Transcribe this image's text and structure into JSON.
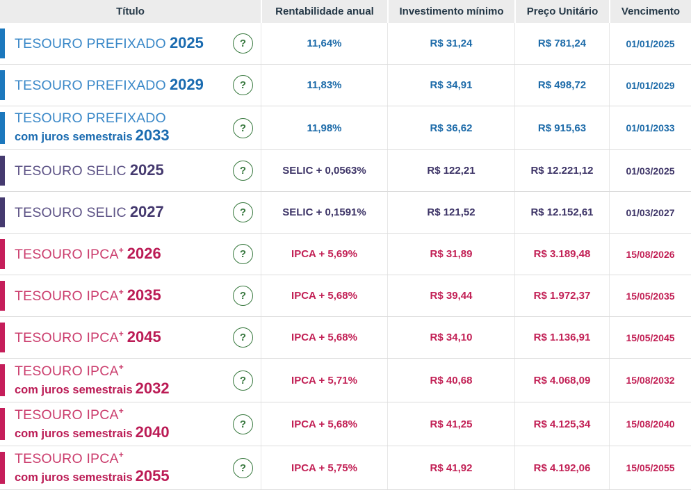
{
  "table": {
    "columns": [
      "Título",
      "Rentabilidade anual",
      "Investimento mínimo",
      "Preço Unitário",
      "Vencimento"
    ],
    "help_glyph": "?",
    "rows": [
      {
        "group": "prefixado",
        "name": "TESOURO PREFIXADO",
        "plus": "",
        "sub": "",
        "year": "2025",
        "rate": "11,64%",
        "min_investment": "R$ 31,24",
        "unit_price": "R$ 781,24",
        "maturity": "01/01/2025"
      },
      {
        "group": "prefixado",
        "name": "TESOURO PREFIXADO",
        "plus": "",
        "sub": "",
        "year": "2029",
        "rate": "11,83%",
        "min_investment": "R$ 34,91",
        "unit_price": "R$ 498,72",
        "maturity": "01/01/2029"
      },
      {
        "group": "prefixado",
        "name": "TESOURO PREFIXADO",
        "plus": "",
        "sub": "com juros semestrais",
        "year": "2033",
        "rate": "11,98%",
        "min_investment": "R$ 36,62",
        "unit_price": "R$ 915,63",
        "maturity": "01/01/2033"
      },
      {
        "group": "selic",
        "name": "TESOURO SELIC",
        "plus": "",
        "sub": "",
        "year": "2025",
        "rate": "SELIC + 0,0563%",
        "min_investment": "R$ 122,21",
        "unit_price": "R$ 12.221,12",
        "maturity": "01/03/2025"
      },
      {
        "group": "selic",
        "name": "TESOURO SELIC",
        "plus": "",
        "sub": "",
        "year": "2027",
        "rate": "SELIC + 0,1591%",
        "min_investment": "R$ 121,52",
        "unit_price": "R$ 12.152,61",
        "maturity": "01/03/2027"
      },
      {
        "group": "ipca",
        "name": "TESOURO IPCA",
        "plus": "+",
        "sub": "",
        "year": "2026",
        "rate": "IPCA + 5,69%",
        "min_investment": "R$ 31,89",
        "unit_price": "R$ 3.189,48",
        "maturity": "15/08/2026"
      },
      {
        "group": "ipca",
        "name": "TESOURO IPCA",
        "plus": "+",
        "sub": "",
        "year": "2035",
        "rate": "IPCA + 5,68%",
        "min_investment": "R$ 39,44",
        "unit_price": "R$ 1.972,37",
        "maturity": "15/05/2035"
      },
      {
        "group": "ipca",
        "name": "TESOURO IPCA",
        "plus": "+",
        "sub": "",
        "year": "2045",
        "rate": "IPCA + 5,68%",
        "min_investment": "R$ 34,10",
        "unit_price": "R$ 1.136,91",
        "maturity": "15/05/2045"
      },
      {
        "group": "ipca",
        "name": "TESOURO IPCA",
        "plus": "+",
        "sub": "com juros semestrais",
        "year": "2032",
        "rate": "IPCA + 5,71%",
        "min_investment": "R$ 40,68",
        "unit_price": "R$ 4.068,09",
        "maturity": "15/08/2032"
      },
      {
        "group": "ipca",
        "name": "TESOURO IPCA",
        "plus": "+",
        "sub": "com juros semestrais",
        "year": "2040",
        "rate": "IPCA + 5,68%",
        "min_investment": "R$ 41,25",
        "unit_price": "R$ 4.125,34",
        "maturity": "15/08/2040"
      },
      {
        "group": "ipca",
        "name": "TESOURO IPCA",
        "plus": "+",
        "sub": "com juros semestrais",
        "year": "2055",
        "rate": "IPCA + 5,75%",
        "min_investment": "R$ 41,92",
        "unit_price": "R$ 4.192,06",
        "maturity": "15/05/2055"
      }
    ]
  },
  "colors": {
    "prefixado": {
      "bar": "#1c78bd",
      "title": "#3a88c8",
      "strong": "#1a6bb0",
      "value": "#1d6ba9"
    },
    "selic": {
      "bar": "#453a6f",
      "title": "#5d5386",
      "strong": "#453a6f",
      "value": "#3c3366"
    },
    "ipca": {
      "bar": "#c51e5a",
      "title": "#cb3d6d",
      "strong": "#bb1b55",
      "value": "#c22055"
    },
    "help_green": "#3a7a40",
    "header_bg": "#ececec",
    "header_text": "#253847"
  }
}
